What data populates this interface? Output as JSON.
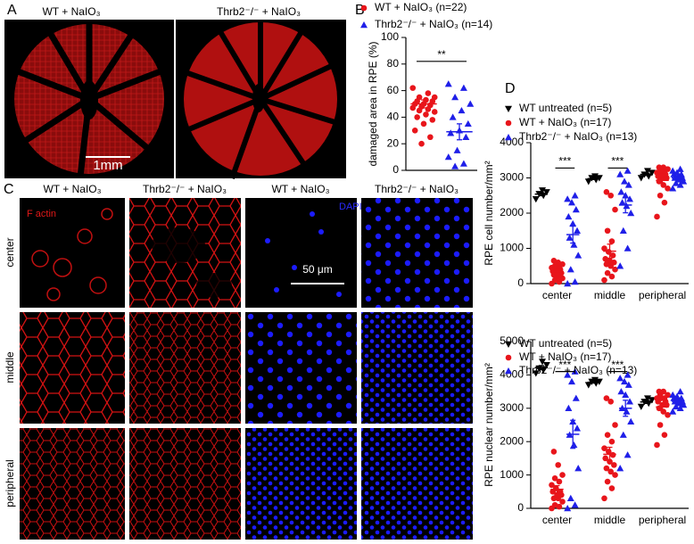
{
  "panel_labels": [
    "A",
    "B",
    "C",
    "D"
  ],
  "panel_a": {
    "labels": [
      "WT + NaIO₃",
      "Thrb2⁻/⁻ + NaIO₃"
    ],
    "scale_bar": "1mm"
  },
  "panel_c": {
    "columns": [
      "WT + NaIO₃",
      "Thrb2⁻/⁻ + NaIO₃",
      "WT + NaIO₃",
      "Thrb2⁻/⁻ + NaIO₃"
    ],
    "rows": [
      "center",
      "middle",
      "peripheral"
    ],
    "stain_labels": [
      "F actin",
      "DAPI"
    ],
    "scale_bar": "50 μm"
  },
  "chart_data": [
    {
      "type": "dotplot",
      "ylabel": "damaged area in RPE (%)",
      "ylim": [
        0,
        100
      ],
      "yticks": [
        0,
        20,
        40,
        60,
        80,
        100
      ],
      "significance": "**",
      "legend": "top",
      "series": [
        {
          "name": "WT + NaIO₃ (n=22)",
          "color": "#e8151b",
          "marker": "circle",
          "values": [
            62,
            58,
            55,
            55,
            53,
            52,
            52,
            50,
            50,
            49,
            48,
            47,
            46,
            45,
            44,
            42,
            40,
            38,
            35,
            30,
            25,
            20
          ],
          "mean": 50,
          "sem": 3
        },
        {
          "name": "Thrb2⁻/⁻ + NaIO₃ (n=14)",
          "color": "#1f1fe8",
          "marker": "triangle-up",
          "values": [
            65,
            62,
            55,
            50,
            45,
            40,
            35,
            30,
            28,
            25,
            15,
            10,
            5,
            3
          ],
          "mean": 29,
          "sem": 6
        }
      ]
    },
    {
      "type": "dotplot",
      "ylabel": "RPE cell number/mm²",
      "categories": [
        "center",
        "middle",
        "peripheral"
      ],
      "ylim": [
        0,
        4000
      ],
      "yticks": [
        0,
        1000,
        2000,
        3000,
        4000
      ],
      "significance": [
        "***",
        "***",
        null
      ],
      "legend": "top",
      "series": [
        {
          "name": "WT untreated (n=5)",
          "color": "#000000",
          "marker": "triangle-down",
          "values": [
            [
              2400,
              2500,
              2550,
              2600,
              2650
            ],
            [
              2900,
              2950,
              3000,
              3000,
              3050
            ],
            [
              3000,
              3050,
              3100,
              3150,
              3200
            ]
          ],
          "mean": [
            2540,
            2980,
            3100
          ],
          "sem": [
            45,
            25,
            30
          ]
        },
        {
          "name": "WT + NaIO₃ (n=17)",
          "color": "#e8151b",
          "marker": "circle",
          "values": [
            [
              0,
              50,
              100,
              150,
              200,
              250,
              300,
              300,
              350,
              400,
              400,
              450,
              500,
              500,
              550,
              600,
              650
            ],
            [
              100,
              200,
              300,
              400,
              500,
              550,
              600,
              650,
              700,
              800,
              900,
              1000,
              1200,
              1500,
              2100,
              2500,
              2600
            ],
            [
              1900,
              2300,
              2500,
              2700,
              2800,
              2900,
              3000,
              3000,
              3050,
              3100,
              3100,
              3150,
              3200,
              3200,
              3250,
              3300,
              3300
            ]
          ],
          "mean": [
            340,
            920,
            2930
          ],
          "sem": [
            45,
            200,
            85
          ]
        },
        {
          "name": "Thrb2⁻/⁻ + NaIO₃ (n=13)",
          "color": "#1f1fe8",
          "marker": "triangle-up",
          "values": [
            [
              0,
              50,
              400,
              800,
              1100,
              1300,
              1500,
              1700,
              1900,
              2100,
              2300,
              2400,
              2500
            ],
            [
              500,
              1000,
              1500,
              2000,
              2200,
              2300,
              2400,
              2500,
              2600,
              2800,
              2900,
              3100,
              3200
            ],
            [
              2700,
              2800,
              2850,
              2900,
              2950,
              3000,
              3000,
              3050,
              3100,
              3100,
              3150,
              3200,
              3250
            ]
          ],
          "mean": [
            1390,
            2230,
            3000
          ],
          "sem": [
            240,
            220,
            45
          ]
        }
      ]
    },
    {
      "type": "dotplot",
      "ylabel": "RPE nuclear number/mm²",
      "categories": [
        "center",
        "middle",
        "peripheral"
      ],
      "ylim": [
        0,
        5000
      ],
      "yticks": [
        0,
        1000,
        2000,
        3000,
        4000,
        5000
      ],
      "significance": [
        "***",
        "***",
        null
      ],
      "legend": "top",
      "series": [
        {
          "name": "WT untreated (n=5)",
          "color": "#000000",
          "marker": "triangle-down",
          "values": [
            [
              4050,
              4150,
              4200,
              4300,
              4400
            ],
            [
              3700,
              3750,
              3800,
              3800,
              3850
            ],
            [
              3050,
              3150,
              3200,
              3250,
              3300
            ]
          ],
          "mean": [
            4220,
            3780,
            3190
          ],
          "sem": [
            60,
            25,
            45
          ]
        },
        {
          "name": "WT + NaIO₃ (n=17)",
          "color": "#e8151b",
          "marker": "circle",
          "values": [
            [
              0,
              50,
              100,
              200,
              300,
              300,
              400,
              400,
              500,
              500,
              600,
              700,
              800,
              900,
              1000,
              1300,
              1700
            ],
            [
              300,
              600,
              800,
              1000,
              1100,
              1200,
              1300,
              1400,
              1500,
              1600,
              1700,
              1800,
              2000,
              2200,
              2500,
              3200,
              3300
            ],
            [
              1900,
              2200,
              2500,
              2800,
              2900,
              3000,
              3100,
              3100,
              3200,
              3200,
              3300,
              3300,
              3300,
              3400,
              3400,
              3500,
              3500
            ]
          ],
          "mean": [
            570,
            1620,
            3040
          ],
          "sem": [
            110,
            210,
            100
          ]
        },
        {
          "name": "Thrb2⁻/⁻ + NaIO₃ (n=13)",
          "color": "#1f1fe8",
          "marker": "triangle-up",
          "values": [
            [
              0,
              100,
              300,
              1200,
              1900,
              2200,
              2400,
              2600,
              3000,
              3300,
              3800,
              4000,
              4100
            ],
            [
              1200,
              1600,
              2200,
              2600,
              2900,
              3000,
              3200,
              3400,
              3500,
              3700,
              3800,
              3900,
              4000
            ],
            [
              2900,
              3000,
              3050,
              3100,
              3150,
              3200,
              3200,
              3250,
              3300,
              3300,
              3350,
              3400,
              3500
            ]
          ],
          "mean": [
            2220,
            3000,
            3210
          ],
          "sem": [
            420,
            240,
            45
          ]
        }
      ]
    }
  ]
}
